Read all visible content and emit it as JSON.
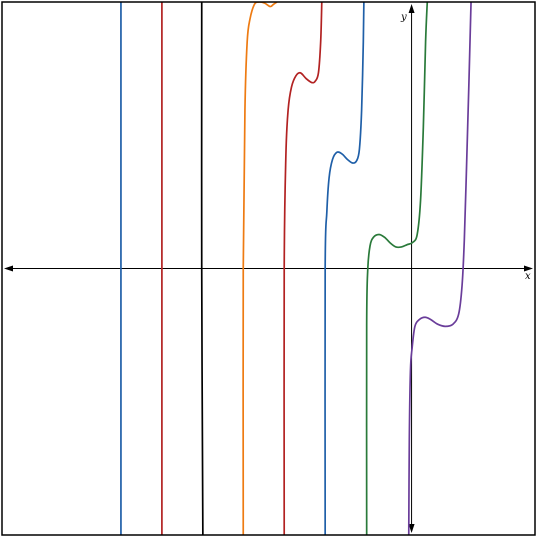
{
  "chart_data": {
    "type": "line",
    "title": "",
    "xlabel": "x",
    "ylabel": "y",
    "xlim": [
      -7.3,
      2.2
    ],
    "ylim": [
      -4.7,
      4.7
    ],
    "grid": false,
    "legend": "none",
    "frame_color": "#000000",
    "series": [
      {
        "color": "#1f5fa8",
        "points": [
          [
            -5.18,
            -4.7
          ],
          [
            -5.18,
            4.7
          ]
        ]
      },
      {
        "color": "#b22222",
        "points": [
          [
            -4.45,
            -4.7
          ],
          [
            -4.45,
            4.7
          ]
        ]
      },
      {
        "color": "#000000",
        "points": [
          [
            -3.72,
            -4.7
          ],
          [
            -3.74,
            0.0
          ],
          [
            -3.74,
            4.7
          ]
        ]
      },
      {
        "color": "#ee7b12",
        "points": [
          [
            -3.0,
            -4.7
          ],
          [
            -3.0,
            0.0
          ],
          [
            -2.97,
            2.8
          ],
          [
            -2.93,
            4.0
          ],
          [
            -2.88,
            4.4
          ],
          [
            -2.8,
            4.66
          ],
          [
            -2.72,
            4.7
          ],
          [
            -2.62,
            4.68
          ],
          [
            -2.52,
            4.62
          ],
          [
            -2.46,
            4.66
          ],
          [
            -2.4,
            4.7
          ]
        ]
      },
      {
        "color": "#b22222",
        "points": [
          [
            -2.27,
            -4.7
          ],
          [
            -2.27,
            0.0
          ],
          [
            -2.24,
            2.0
          ],
          [
            -2.2,
            2.8
          ],
          [
            -2.14,
            3.2
          ],
          [
            -2.06,
            3.4
          ],
          [
            -1.98,
            3.45
          ],
          [
            -1.88,
            3.35
          ],
          [
            -1.78,
            3.28
          ],
          [
            -1.72,
            3.3
          ],
          [
            -1.66,
            3.45
          ],
          [
            -1.62,
            4.0
          ],
          [
            -1.6,
            4.7
          ]
        ]
      },
      {
        "color": "#1f5fa8",
        "points": [
          [
            -1.54,
            -4.7
          ],
          [
            -1.54,
            0.0
          ],
          [
            -1.51,
            1.0
          ],
          [
            -1.47,
            1.6
          ],
          [
            -1.41,
            1.92
          ],
          [
            -1.33,
            2.05
          ],
          [
            -1.24,
            2.02
          ],
          [
            -1.14,
            1.92
          ],
          [
            -1.05,
            1.86
          ],
          [
            -0.98,
            1.9
          ],
          [
            -0.93,
            2.1
          ],
          [
            -0.89,
            2.8
          ],
          [
            -0.86,
            4.0
          ],
          [
            -0.85,
            4.7
          ]
        ]
      },
      {
        "color": "#2a7a3a",
        "points": [
          [
            -0.8,
            -4.7
          ],
          [
            -0.8,
            -1.0
          ],
          [
            -0.78,
            0.0
          ],
          [
            -0.74,
            0.4
          ],
          [
            -0.68,
            0.55
          ],
          [
            -0.58,
            0.6
          ],
          [
            -0.48,
            0.55
          ],
          [
            -0.38,
            0.45
          ],
          [
            -0.28,
            0.38
          ],
          [
            -0.18,
            0.38
          ],
          [
            -0.08,
            0.42
          ],
          [
            0.02,
            0.46
          ],
          [
            0.1,
            0.6
          ],
          [
            0.16,
            1.2
          ],
          [
            0.21,
            2.5
          ],
          [
            0.25,
            4.0
          ],
          [
            0.28,
            4.7
          ]
        ]
      },
      {
        "color": "#6a3d9a",
        "points": [
          [
            -0.05,
            -4.7
          ],
          [
            -0.04,
            -3.0
          ],
          [
            -0.02,
            -1.8
          ],
          [
            0.01,
            -1.4
          ],
          [
            0.06,
            -1.02
          ],
          [
            0.14,
            -0.9
          ],
          [
            0.24,
            -0.86
          ],
          [
            0.34,
            -0.9
          ],
          [
            0.46,
            -0.98
          ],
          [
            0.6,
            -1.02
          ],
          [
            0.74,
            -0.98
          ],
          [
            0.84,
            -0.8
          ],
          [
            0.9,
            -0.3
          ],
          [
            0.94,
            0.5
          ],
          [
            0.98,
            1.8
          ],
          [
            1.02,
            3.2
          ],
          [
            1.06,
            4.7
          ]
        ]
      }
    ]
  }
}
